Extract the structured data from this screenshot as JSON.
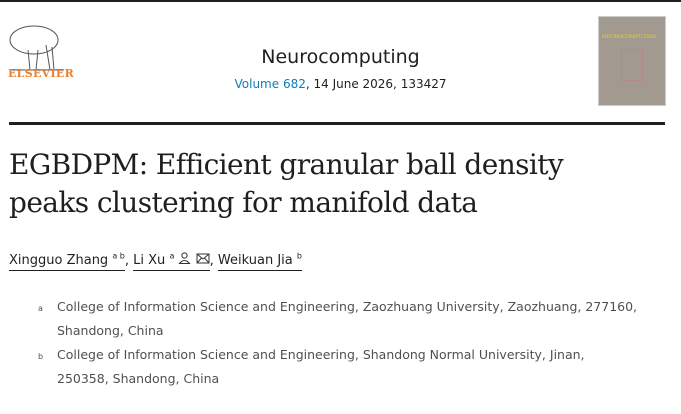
{
  "publisher": {
    "name": "ELSEVIER"
  },
  "journal": {
    "name": "Neurocomputing",
    "volume_link": "Volume 682",
    "rest": ", 14 June 2026, 133427",
    "cover_title": "NEUROCOMPUTING"
  },
  "article": {
    "title": "EGBDPM: Efficient granular ball density peaks clustering for manifold data"
  },
  "authors": [
    {
      "name": "Xingguo Zhang",
      "sup": "a b"
    },
    {
      "name": "Li Xu",
      "sup": "a"
    },
    {
      "name": "Weikuan Jia",
      "sup": "b"
    }
  ],
  "separator": ",",
  "affiliations": [
    {
      "label": "a",
      "text": "College of Information Science and Engineering, Zaozhuang University, Zaozhuang, 277160, Shandong, China"
    },
    {
      "label": "b",
      "text": "College of Information Science and Engineering, Shandong Normal University, Jinan, 250358, Shandong, China"
    }
  ],
  "colors": {
    "brand": "#f07e26",
    "link": "#0c7dbb"
  }
}
